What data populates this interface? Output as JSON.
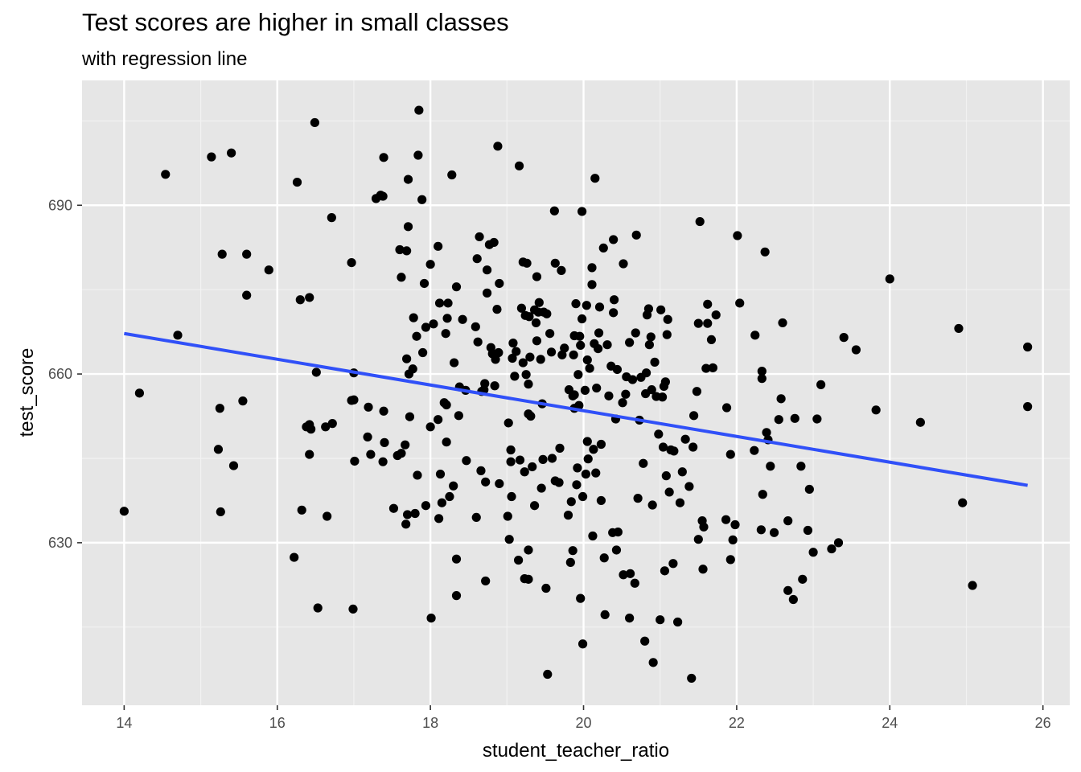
{
  "chart_data": {
    "type": "scatter",
    "title": "Test scores are higher in small classes",
    "subtitle": "with regression line",
    "xlabel": "student_teacher_ratio",
    "ylabel": "test_score",
    "xlim": [
      13.45,
      26.35
    ],
    "ylim": [
      601.1,
      712.2
    ],
    "x_ticks": [
      14,
      16,
      18,
      20,
      22,
      24,
      26
    ],
    "y_ticks": [
      630,
      660,
      690
    ],
    "grid": true,
    "legend": "none",
    "point_color": "#000000",
    "panel_color": "#e6e6e6",
    "regression_line": {
      "color": "#3050f8",
      "x": [
        14.0,
        25.8
      ],
      "y": [
        667.2,
        640.2
      ]
    },
    "points": [
      [
        14.0,
        635.6
      ],
      [
        14.2,
        656.6
      ],
      [
        14.54,
        695.5
      ],
      [
        14.7,
        666.9
      ],
      [
        15.14,
        698.6
      ],
      [
        15.23,
        646.6
      ],
      [
        15.25,
        653.9
      ],
      [
        15.26,
        635.5
      ],
      [
        15.28,
        681.3
      ],
      [
        15.4,
        699.3
      ],
      [
        15.43,
        643.7
      ],
      [
        15.55,
        655.2
      ],
      [
        15.6,
        681.3
      ],
      [
        15.6,
        674.0
      ],
      [
        15.89,
        678.5
      ],
      [
        16.22,
        627.4
      ],
      [
        16.26,
        694.1
      ],
      [
        16.3,
        673.2
      ],
      [
        16.32,
        635.8
      ],
      [
        16.38,
        650.6
      ],
      [
        16.42,
        673.6
      ],
      [
        16.42,
        645.7
      ],
      [
        16.42,
        651.0
      ],
      [
        16.44,
        650.2
      ],
      [
        16.49,
        704.7
      ],
      [
        16.51,
        660.3
      ],
      [
        16.53,
        618.4
      ],
      [
        16.63,
        650.6
      ],
      [
        16.65,
        634.7
      ],
      [
        16.71,
        687.8
      ],
      [
        16.72,
        651.2
      ],
      [
        16.97,
        679.8
      ],
      [
        16.97,
        655.3
      ],
      [
        16.99,
        618.2
      ],
      [
        17.0,
        655.4
      ],
      [
        17.0,
        660.2
      ],
      [
        17.01,
        644.5
      ],
      [
        17.18,
        648.8
      ],
      [
        17.19,
        654.1
      ],
      [
        17.22,
        645.7
      ],
      [
        17.29,
        691.2
      ],
      [
        17.35,
        691.8
      ],
      [
        17.38,
        691.6
      ],
      [
        17.38,
        644.4
      ],
      [
        17.39,
        698.5
      ],
      [
        17.39,
        653.4
      ],
      [
        17.4,
        647.8
      ],
      [
        17.52,
        636.1
      ],
      [
        17.57,
        645.5
      ],
      [
        17.6,
        682.1
      ],
      [
        17.62,
        677.2
      ],
      [
        17.62,
        645.9
      ],
      [
        17.67,
        647.4
      ],
      [
        17.68,
        633.3
      ],
      [
        17.69,
        662.7
      ],
      [
        17.69,
        681.9
      ],
      [
        17.7,
        635.0
      ],
      [
        17.71,
        686.2
      ],
      [
        17.71,
        694.6
      ],
      [
        17.72,
        660.0
      ],
      [
        17.73,
        652.4
      ],
      [
        17.77,
        660.9
      ],
      [
        17.78,
        670.0
      ],
      [
        17.8,
        635.2
      ],
      [
        17.82,
        666.7
      ],
      [
        17.83,
        642.0
      ],
      [
        17.84,
        698.9
      ],
      [
        17.85,
        706.9
      ],
      [
        17.89,
        691.0
      ],
      [
        17.9,
        663.8
      ],
      [
        17.92,
        676.1
      ],
      [
        17.94,
        668.3
      ],
      [
        17.94,
        636.6
      ],
      [
        18.0,
        679.5
      ],
      [
        18.0,
        650.6
      ],
      [
        18.01,
        616.6
      ],
      [
        18.04,
        668.9
      ],
      [
        18.1,
        682.7
      ],
      [
        18.1,
        651.9
      ],
      [
        18.11,
        634.3
      ],
      [
        18.12,
        672.6
      ],
      [
        18.13,
        642.2
      ],
      [
        18.15,
        637.1
      ],
      [
        18.18,
        654.9
      ],
      [
        18.2,
        667.2
      ],
      [
        18.21,
        654.5
      ],
      [
        18.21,
        647.9
      ],
      [
        18.22,
        669.9
      ],
      [
        18.23,
        672.6
      ],
      [
        18.25,
        638.2
      ],
      [
        18.28,
        695.4
      ],
      [
        18.3,
        640.1
      ],
      [
        18.31,
        662.0
      ],
      [
        18.34,
        675.5
      ],
      [
        18.34,
        627.1
      ],
      [
        18.34,
        620.6
      ],
      [
        18.37,
        652.6
      ],
      [
        18.38,
        657.7
      ],
      [
        18.42,
        669.7
      ],
      [
        18.46,
        657.1
      ],
      [
        18.47,
        644.6
      ],
      [
        18.59,
        668.4
      ],
      [
        18.6,
        634.5
      ],
      [
        18.61,
        680.5
      ],
      [
        18.62,
        665.7
      ],
      [
        18.64,
        684.4
      ],
      [
        18.66,
        642.8
      ],
      [
        18.67,
        656.9
      ],
      [
        18.7,
        657.2
      ],
      [
        18.71,
        658.3
      ],
      [
        18.72,
        640.8
      ],
      [
        18.72,
        623.2
      ],
      [
        18.74,
        678.5
      ],
      [
        18.74,
        674.4
      ],
      [
        18.77,
        683.0
      ],
      [
        18.79,
        664.7
      ],
      [
        18.81,
        663.6
      ],
      [
        18.83,
        683.4
      ],
      [
        18.84,
        657.9
      ],
      [
        18.85,
        662.6
      ],
      [
        18.87,
        671.5
      ],
      [
        18.88,
        700.5
      ],
      [
        18.89,
        663.8
      ],
      [
        18.9,
        676.1
      ],
      [
        18.9,
        640.5
      ],
      [
        19.01,
        634.7
      ],
      [
        19.02,
        651.3
      ],
      [
        19.03,
        630.6
      ],
      [
        19.05,
        646.5
      ],
      [
        19.05,
        644.4
      ],
      [
        19.06,
        638.2
      ],
      [
        19.07,
        662.8
      ],
      [
        19.08,
        665.5
      ],
      [
        19.1,
        659.6
      ],
      [
        19.12,
        664.0
      ],
      [
        19.15,
        626.9
      ],
      [
        19.16,
        697.0
      ],
      [
        19.17,
        644.7
      ],
      [
        19.19,
        671.7
      ],
      [
        19.21,
        679.9
      ],
      [
        19.21,
        662.0
      ],
      [
        19.23,
        623.6
      ],
      [
        19.23,
        642.6
      ],
      [
        19.24,
        670.4
      ],
      [
        19.25,
        659.9
      ],
      [
        19.26,
        679.7
      ],
      [
        19.28,
        658.2
      ],
      [
        19.28,
        623.5
      ],
      [
        19.28,
        652.9
      ],
      [
        19.28,
        628.7
      ],
      [
        19.29,
        670.2
      ],
      [
        19.3,
        663.0
      ],
      [
        19.31,
        652.5
      ],
      [
        19.33,
        643.5
      ],
      [
        19.36,
        636.6
      ],
      [
        19.36,
        671.4
      ],
      [
        19.38,
        669.1
      ],
      [
        19.39,
        677.3
      ],
      [
        19.39,
        665.9
      ],
      [
        19.41,
        671.0
      ],
      [
        19.42,
        672.7
      ],
      [
        19.44,
        662.6
      ],
      [
        19.45,
        639.7
      ],
      [
        19.46,
        654.7
      ],
      [
        19.47,
        644.8
      ],
      [
        19.48,
        671.0
      ],
      [
        19.51,
        621.9
      ],
      [
        19.52,
        670.7
      ],
      [
        19.53,
        606.6
      ],
      [
        19.56,
        667.2
      ],
      [
        19.58,
        663.9
      ],
      [
        19.59,
        645.0
      ],
      [
        19.62,
        689.0
      ],
      [
        19.63,
        641.0
      ],
      [
        19.63,
        679.7
      ],
      [
        19.68,
        640.7
      ],
      [
        19.69,
        646.8
      ],
      [
        19.71,
        678.4
      ],
      [
        19.72,
        663.4
      ],
      [
        19.75,
        664.6
      ],
      [
        19.8,
        634.9
      ],
      [
        19.81,
        657.2
      ],
      [
        19.83,
        626.5
      ],
      [
        19.84,
        637.3
      ],
      [
        19.86,
        628.6
      ],
      [
        19.86,
        656.1
      ],
      [
        19.87,
        663.4
      ],
      [
        19.88,
        666.8
      ],
      [
        19.88,
        656.3
      ],
      [
        19.88,
        653.9
      ],
      [
        19.9,
        672.5
      ],
      [
        19.91,
        640.3
      ],
      [
        19.92,
        643.3
      ],
      [
        19.93,
        659.9
      ],
      [
        19.94,
        654.4
      ],
      [
        19.95,
        666.7
      ],
      [
        19.96,
        620.1
      ],
      [
        19.96,
        665.1
      ],
      [
        19.98,
        688.9
      ],
      [
        19.98,
        669.8
      ],
      [
        19.99,
        638.2
      ],
      [
        19.99,
        612.0
      ],
      [
        20.02,
        657.1
      ],
      [
        20.03,
        642.2
      ],
      [
        20.04,
        672.2
      ],
      [
        20.05,
        648.0
      ],
      [
        20.05,
        662.5
      ],
      [
        20.06,
        644.9
      ],
      [
        20.08,
        661.0
      ],
      [
        20.11,
        675.9
      ],
      [
        20.11,
        678.9
      ],
      [
        20.12,
        631.2
      ],
      [
        20.13,
        646.6
      ],
      [
        20.14,
        665.4
      ],
      [
        20.15,
        694.8
      ],
      [
        20.16,
        642.4
      ],
      [
        20.17,
        657.5
      ],
      [
        20.19,
        664.5
      ],
      [
        20.2,
        667.3
      ],
      [
        20.21,
        671.9
      ],
      [
        20.23,
        647.5
      ],
      [
        20.23,
        637.5
      ],
      [
        20.26,
        682.4
      ],
      [
        20.27,
        627.3
      ],
      [
        20.28,
        617.2
      ],
      [
        20.31,
        665.2
      ],
      [
        20.33,
        656.1
      ],
      [
        20.36,
        661.4
      ],
      [
        20.38,
        631.8
      ],
      [
        20.39,
        670.9
      ],
      [
        20.39,
        683.9
      ],
      [
        20.4,
        673.2
      ],
      [
        20.42,
        652.0
      ],
      [
        20.43,
        628.7
      ],
      [
        20.44,
        660.8
      ],
      [
        20.45,
        631.9
      ],
      [
        20.51,
        654.9
      ],
      [
        20.52,
        624.3
      ],
      [
        20.52,
        679.6
      ],
      [
        20.55,
        656.4
      ],
      [
        20.56,
        659.5
      ],
      [
        20.6,
        665.6
      ],
      [
        20.6,
        616.6
      ],
      [
        20.61,
        624.5
      ],
      [
        20.64,
        659.0
      ],
      [
        20.67,
        622.8
      ],
      [
        20.68,
        667.3
      ],
      [
        20.69,
        684.7
      ],
      [
        20.71,
        637.9
      ],
      [
        20.73,
        651.8
      ],
      [
        20.75,
        659.4
      ],
      [
        20.78,
        644.1
      ],
      [
        20.8,
        612.5
      ],
      [
        20.81,
        656.5
      ],
      [
        20.82,
        660.2
      ],
      [
        20.83,
        670.5
      ],
      [
        20.85,
        671.6
      ],
      [
        20.86,
        665.2
      ],
      [
        20.88,
        666.6
      ],
      [
        20.89,
        657.2
      ],
      [
        20.9,
        636.7
      ],
      [
        20.91,
        608.7
      ],
      [
        20.93,
        662.1
      ],
      [
        20.95,
        656.0
      ],
      [
        20.98,
        649.3
      ],
      [
        21.0,
        616.3
      ],
      [
        21.01,
        671.4
      ],
      [
        21.03,
        655.9
      ],
      [
        21.04,
        647.0
      ],
      [
        21.05,
        657.8
      ],
      [
        21.06,
        625.0
      ],
      [
        21.07,
        658.6
      ],
      [
        21.08,
        641.9
      ],
      [
        21.09,
        667.0
      ],
      [
        21.1,
        669.7
      ],
      [
        21.12,
        639.0
      ],
      [
        21.14,
        646.5
      ],
      [
        21.17,
        626.3
      ],
      [
        21.18,
        646.3
      ],
      [
        21.23,
        615.9
      ],
      [
        21.26,
        637.1
      ],
      [
        21.29,
        642.6
      ],
      [
        21.33,
        648.4
      ],
      [
        21.38,
        640.0
      ],
      [
        21.41,
        605.9
      ],
      [
        21.43,
        647.0
      ],
      [
        21.44,
        652.6
      ],
      [
        21.48,
        656.9
      ],
      [
        21.5,
        630.6
      ],
      [
        21.5,
        669.0
      ],
      [
        21.52,
        687.1
      ],
      [
        21.55,
        633.9
      ],
      [
        21.56,
        625.3
      ],
      [
        21.57,
        632.8
      ],
      [
        21.6,
        661.0
      ],
      [
        21.62,
        672.4
      ],
      [
        21.62,
        669.0
      ],
      [
        21.67,
        666.1
      ],
      [
        21.69,
        661.1
      ],
      [
        21.73,
        670.5
      ],
      [
        21.86,
        634.1
      ],
      [
        21.87,
        654.0
      ],
      [
        21.92,
        627.0
      ],
      [
        21.92,
        645.7
      ],
      [
        21.95,
        630.5
      ],
      [
        21.98,
        633.2
      ],
      [
        22.01,
        684.6
      ],
      [
        22.04,
        672.6
      ],
      [
        22.23,
        646.4
      ],
      [
        22.24,
        666.9
      ],
      [
        22.32,
        632.3
      ],
      [
        22.33,
        660.5
      ],
      [
        22.33,
        659.2
      ],
      [
        22.34,
        638.6
      ],
      [
        22.37,
        681.7
      ],
      [
        22.39,
        649.6
      ],
      [
        22.41,
        648.3
      ],
      [
        22.44,
        643.6
      ],
      [
        22.49,
        631.8
      ],
      [
        22.55,
        651.9
      ],
      [
        22.58,
        655.6
      ],
      [
        22.6,
        669.1
      ],
      [
        22.67,
        633.9
      ],
      [
        22.67,
        621.5
      ],
      [
        22.74,
        619.9
      ],
      [
        22.76,
        652.1
      ],
      [
        22.84,
        643.6
      ],
      [
        22.86,
        623.5
      ],
      [
        22.93,
        632.2
      ],
      [
        22.95,
        639.5
      ],
      [
        23.0,
        628.3
      ],
      [
        23.05,
        652.0
      ],
      [
        23.1,
        658.1
      ],
      [
        23.24,
        628.9
      ],
      [
        23.33,
        630.0
      ],
      [
        23.4,
        666.5
      ],
      [
        23.56,
        664.3
      ],
      [
        23.82,
        653.6
      ],
      [
        24.0,
        676.9
      ],
      [
        24.4,
        651.4
      ],
      [
        24.9,
        668.1
      ],
      [
        24.95,
        637.1
      ],
      [
        25.08,
        622.4
      ],
      [
        25.8,
        664.8
      ],
      [
        25.8,
        654.2
      ]
    ]
  }
}
